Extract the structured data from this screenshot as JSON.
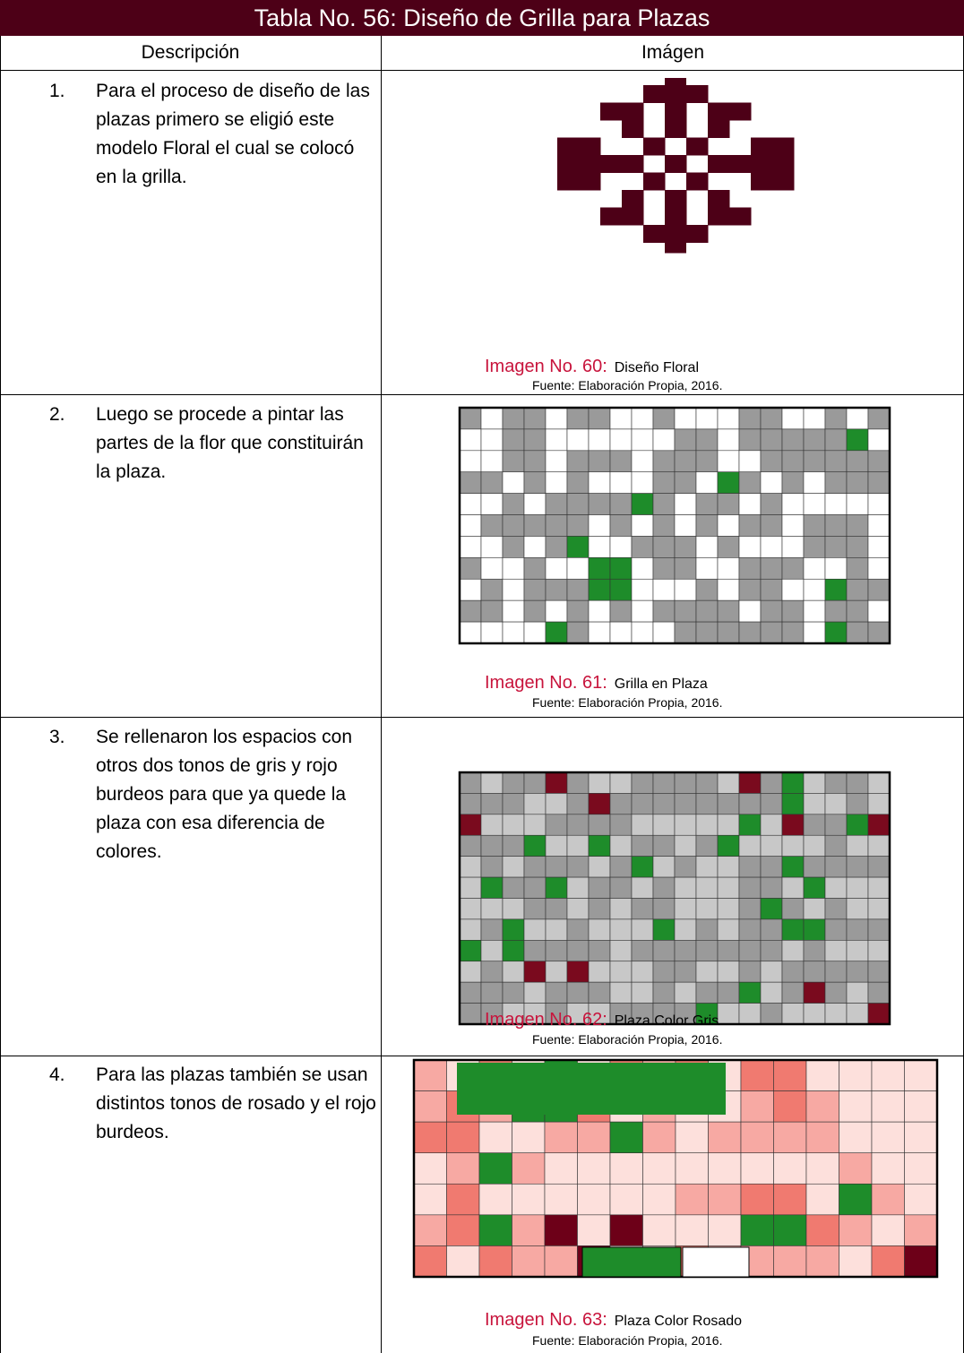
{
  "header": {
    "title": "Tabla No. 56: Diseño de Grilla para Plazas"
  },
  "table": {
    "columns": [
      "Descripción",
      "Imágen"
    ],
    "rows": [
      {
        "number": "1.",
        "description": "Para el proceso de diseño de las plazas primero se eligió este modelo Floral el cual se colocó en la grilla.",
        "caption_label": "Imagen No. 60:",
        "caption_title": "Diseño Floral",
        "source": "Fuente: Elaboración Propia, 2016."
      },
      {
        "number": "2.",
        "description": "Luego se procede a pintar las partes de la flor que constituirán la plaza.",
        "caption_label": "Imagen No. 61:",
        "caption_title": "Grilla en Plaza",
        "source": "Fuente: Elaboración Propia, 2016."
      },
      {
        "number": "3.",
        "description": "Se rellenaron los espacios con otros dos tonos de gris y rojo burdeos para que ya quede la plaza con esa diferencia de colores.",
        "caption_label": "Imagen No. 62:",
        "caption_title": "Plaza Color Gris",
        "source": "Fuente: Elaboración Propia, 2016."
      },
      {
        "number": "4.",
        "description": "Para las plazas también se usan distintos tonos de rosado y el rojo burdeos.",
        "caption_label": "Imagen No. 63:",
        "caption_title": "Plaza Color Rosado",
        "source": "Fuente: Elaboración Propia, 2016."
      }
    ]
  }
}
